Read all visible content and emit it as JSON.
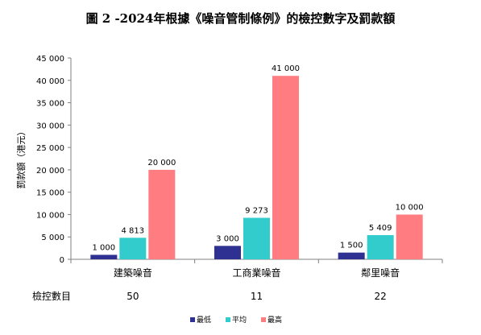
{
  "chart_data": {
    "type": "bar",
    "title": "圖 2 -2024年根據《噪音管制條例》的檢控數字及罰款額",
    "xlabel": "",
    "ylabel": "罰款額（港元）",
    "ylim": [
      0,
      45000
    ],
    "yticks": [
      0,
      5000,
      10000,
      15000,
      20000,
      25000,
      30000,
      35000,
      40000,
      45000
    ],
    "ytick_labels": [
      "0",
      "5 000",
      "10 000",
      "15 000",
      "20 000",
      "25 000",
      "30 000",
      "35 000",
      "40 000",
      "45 000"
    ],
    "grid": false,
    "legend_position": "bottom",
    "categories": [
      "建築噪音",
      "工商業噪音",
      "鄰里噪音"
    ],
    "series": [
      {
        "name": "最低",
        "color": "#2E3192",
        "values": [
          1000,
          3000,
          1500
        ],
        "labels": [
          "1 000",
          "3 000",
          "1 500"
        ]
      },
      {
        "name": "平均",
        "color": "#33CCCC",
        "values": [
          4813,
          9273,
          5409
        ],
        "labels": [
          "4 813",
          "9 273",
          "5 409"
        ]
      },
      {
        "name": "最高",
        "color": "#FF7C80",
        "values": [
          20000,
          41000,
          10000
        ],
        "labels": [
          "20 000",
          "41 000",
          "10 000"
        ]
      }
    ],
    "table_row": {
      "label": "檢控數目",
      "values": [
        "50",
        "11",
        "22"
      ]
    }
  }
}
